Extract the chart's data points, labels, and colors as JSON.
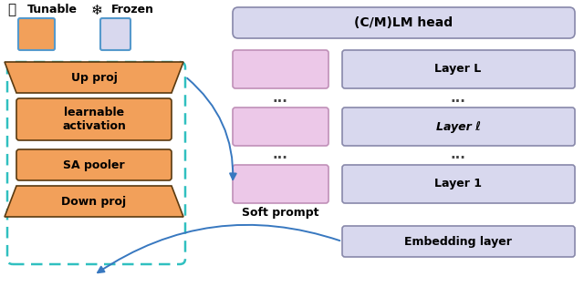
{
  "fig_width": 6.4,
  "fig_height": 3.26,
  "dpi": 100,
  "bg_color": "#ffffff",
  "orange_color": "#F2A05A",
  "orange_border": "#5A3A10",
  "lavender_color": "#D8D8EE",
  "lavender_border": "#8888AA",
  "pink_color": "#ECC8E8",
  "pink_border": "#C090B8",
  "teal_dash_color": "#30C0C0",
  "blue_arrow_color": "#3878C0",
  "soft_prompt_label": "Soft prompt",
  "lm_head_label": "(C/M)LM head",
  "layer_L_label": "Layer L",
  "layer_l_label": "Layer ℓ",
  "layer_1_label": "Layer 1",
  "embedding_label": "Embedding layer",
  "up_proj_label": "Up proj",
  "learnable_label": "learnable\nactivation",
  "sa_pooler_label": "SA pooler",
  "down_proj_label": "Down proj",
  "tunable_label": "Tunable",
  "frozen_label": "Frozen"
}
